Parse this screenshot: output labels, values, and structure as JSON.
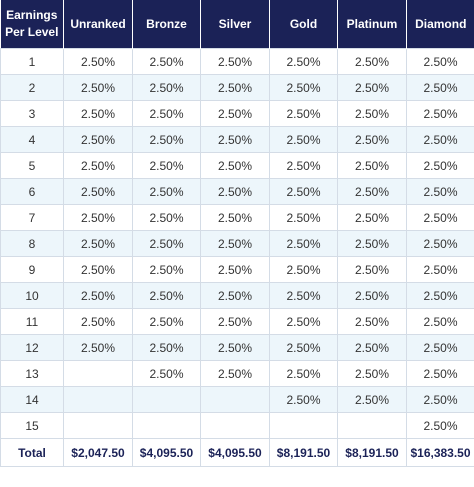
{
  "table": {
    "headers": [
      "Earnings Per Level",
      "Unranked",
      "Bronze",
      "Silver",
      "Gold",
      "Platinum",
      "Diamond"
    ],
    "rows": [
      [
        "1",
        "2.50%",
        "2.50%",
        "2.50%",
        "2.50%",
        "2.50%",
        "2.50%"
      ],
      [
        "2",
        "2.50%",
        "2.50%",
        "2.50%",
        "2.50%",
        "2.50%",
        "2.50%"
      ],
      [
        "3",
        "2.50%",
        "2.50%",
        "2.50%",
        "2.50%",
        "2.50%",
        "2.50%"
      ],
      [
        "4",
        "2.50%",
        "2.50%",
        "2.50%",
        "2.50%",
        "2.50%",
        "2.50%"
      ],
      [
        "5",
        "2.50%",
        "2.50%",
        "2.50%",
        "2.50%",
        "2.50%",
        "2.50%"
      ],
      [
        "6",
        "2.50%",
        "2.50%",
        "2.50%",
        "2.50%",
        "2.50%",
        "2.50%"
      ],
      [
        "7",
        "2.50%",
        "2.50%",
        "2.50%",
        "2.50%",
        "2.50%",
        "2.50%"
      ],
      [
        "8",
        "2.50%",
        "2.50%",
        "2.50%",
        "2.50%",
        "2.50%",
        "2.50%"
      ],
      [
        "9",
        "2.50%",
        "2.50%",
        "2.50%",
        "2.50%",
        "2.50%",
        "2.50%"
      ],
      [
        "10",
        "2.50%",
        "2.50%",
        "2.50%",
        "2.50%",
        "2.50%",
        "2.50%"
      ],
      [
        "11",
        "2.50%",
        "2.50%",
        "2.50%",
        "2.50%",
        "2.50%",
        "2.50%"
      ],
      [
        "12",
        "2.50%",
        "2.50%",
        "2.50%",
        "2.50%",
        "2.50%",
        "2.50%"
      ],
      [
        "13",
        "",
        "2.50%",
        "2.50%",
        "2.50%",
        "2.50%",
        "2.50%"
      ],
      [
        "14",
        "",
        "",
        "",
        "2.50%",
        "2.50%",
        "2.50%"
      ],
      [
        "15",
        "",
        "",
        "",
        "",
        "",
        "2.50%"
      ]
    ],
    "total": [
      "Total",
      "$2,047.50",
      "$4,095.50",
      "$4,095.50",
      "$8,191.50",
      "$8,191.50",
      "$16,383.50"
    ]
  },
  "colors": {
    "header_bg": "#1b2257",
    "row_alt_bg": "#edf6fb",
    "border": "#d4dce6"
  }
}
